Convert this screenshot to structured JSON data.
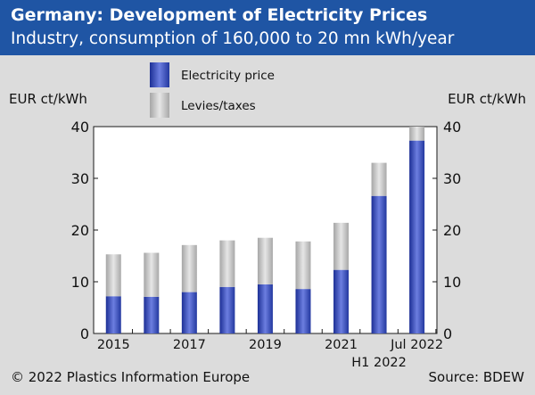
{
  "header": {
    "title": "Germany: Development of Electricity Prices",
    "subtitle": "Industry, consumption of 160,000 to 20 mn kWh/year"
  },
  "footer": {
    "copyright": "© 2022 Plastics Information Europe",
    "source": "Source: BDEW"
  },
  "colors": {
    "header_bg": "#1f55a4",
    "page_bg": "#dcdcdc",
    "plot_bg": "#ffffff",
    "electricity_price": "#3a4fb5",
    "levies_taxes": "#bdbdbd"
  },
  "chart_data": {
    "type": "bar",
    "stacked": true,
    "ylabel_left": "EUR ct/kWh",
    "ylabel_right": "EUR ct/kWh",
    "ylim": [
      0,
      40
    ],
    "yticks": [
      0,
      10,
      20,
      30,
      40
    ],
    "grid": false,
    "legend_position": "top-center",
    "categories": [
      "2015",
      "2016",
      "2017",
      "2018",
      "2019",
      "2020",
      "2021",
      "H1 2022",
      "Jul 2022"
    ],
    "x_tick_labels": [
      {
        "category_index": 0,
        "text": "2015",
        "row": 1
      },
      {
        "category_index": 2,
        "text": "2017",
        "row": 1
      },
      {
        "category_index": 4,
        "text": "2019",
        "row": 1
      },
      {
        "category_index": 6,
        "text": "2021",
        "row": 1
      },
      {
        "category_index": 7,
        "text": "H1 2022",
        "row": 2
      },
      {
        "category_index": 8,
        "text": "Jul 2022",
        "row": 1
      }
    ],
    "series": [
      {
        "name": "Electricity price",
        "color": "#3a4fb5",
        "values": [
          7.2,
          7.1,
          8.0,
          9.0,
          9.5,
          8.6,
          12.3,
          26.6,
          37.3
        ]
      },
      {
        "name": "Levies/taxes",
        "color": "#bdbdbd",
        "values": [
          8.1,
          8.5,
          9.1,
          9.0,
          9.0,
          9.2,
          9.1,
          6.4,
          2.7
        ]
      }
    ]
  }
}
